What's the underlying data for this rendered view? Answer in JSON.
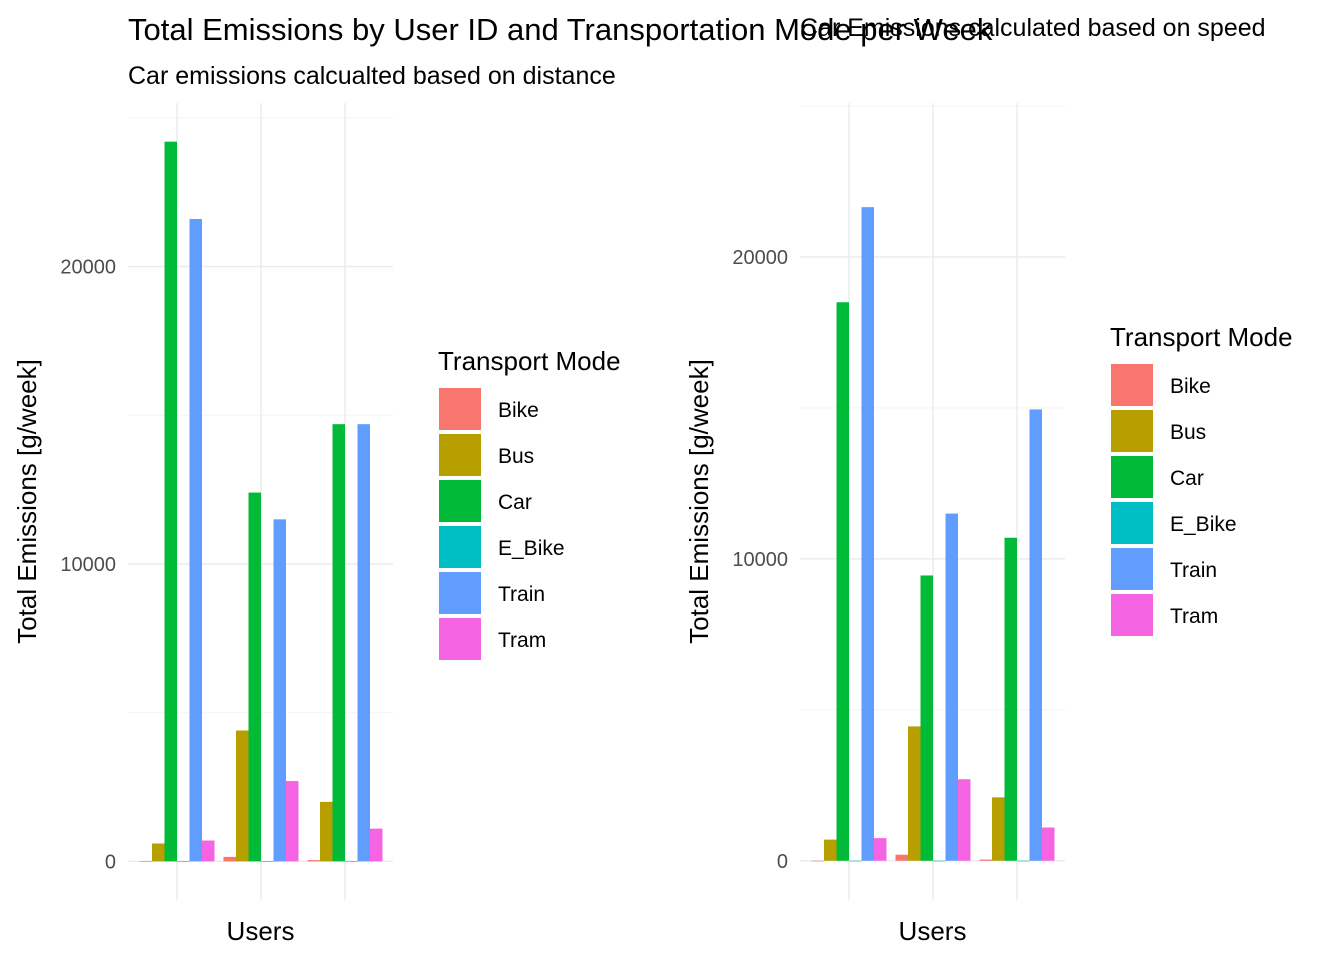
{
  "colors": {
    "Bike": "#F8766D",
    "Bus": "#B79F00",
    "Car": "#00BA38",
    "E_Bike": "#00BFC4",
    "Train": "#619CFF",
    "Tram": "#F564E3"
  },
  "chart_data": [
    {
      "type": "bar",
      "title": "Total Emissions by User ID and Transportation Mode per Week",
      "subtitle": "Car emissions calcualted based on distance",
      "xlabel": "Users",
      "ylabel": "Total Emissions [g/week]",
      "ylim": [
        -1300,
        25500
      ],
      "yticks": [
        0,
        10000,
        20000
      ],
      "legend_title": "Transport Mode",
      "legend_placement": "right",
      "categories": [
        "Bike",
        "Bus",
        "Car",
        "E_Bike",
        "Train",
        "Tram"
      ],
      "groups": [
        {
          "values": {
            "Bike": 0,
            "Bus": 600,
            "Car": 24200,
            "E_Bike": 0,
            "Train": 21600,
            "Tram": 700
          }
        },
        {
          "values": {
            "Bike": 150,
            "Bus": 4400,
            "Car": 12400,
            "E_Bike": 0,
            "Train": 11500,
            "Tram": 2700
          }
        },
        {
          "values": {
            "Bike": 40,
            "Bus": 2000,
            "Car": 14700,
            "E_Bike": 0,
            "Train": 14700,
            "Tram": 1100
          }
        }
      ]
    },
    {
      "type": "bar",
      "title": "Car Emissions calculated based on speed",
      "xlabel": "Users",
      "ylabel": "Total Emissions [g/week]",
      "ylim": [
        -1300,
        25100
      ],
      "yticks": [
        0,
        10000,
        20000
      ],
      "legend_title": "Transport Mode",
      "legend_placement": "right",
      "categories": [
        "Bike",
        "Bus",
        "Car",
        "E_Bike",
        "Train",
        "Tram"
      ],
      "groups": [
        {
          "values": {
            "Bike": 0,
            "Bus": 700,
            "Car": 18500,
            "E_Bike": 0,
            "Train": 21650,
            "Tram": 750
          }
        },
        {
          "values": {
            "Bike": 200,
            "Bus": 4450,
            "Car": 9450,
            "E_Bike": 0,
            "Train": 11500,
            "Tram": 2700
          }
        },
        {
          "values": {
            "Bike": 40,
            "Bus": 2100,
            "Car": 10700,
            "E_Bike": 0,
            "Train": 14950,
            "Tram": 1100
          }
        }
      ]
    }
  ]
}
